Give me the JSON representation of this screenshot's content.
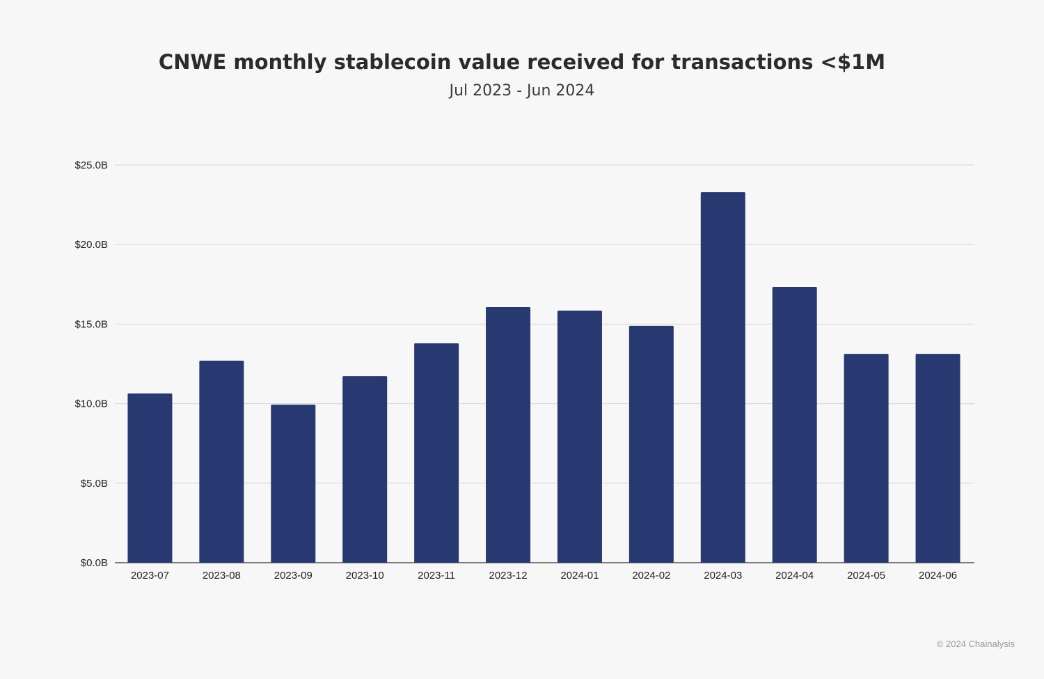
{
  "chart_data": {
    "type": "bar",
    "title": "CNWE monthly stablecoin value received for transactions <$1M",
    "subtitle": "Jul 2023 - Jun 2024",
    "xlabel": "",
    "ylabel": "",
    "categories": [
      "2023-07",
      "2023-08",
      "2023-09",
      "2023-10",
      "2023-11",
      "2023-12",
      "2024-01",
      "2024-02",
      "2024-03",
      "2024-04",
      "2024-05",
      "2024-06"
    ],
    "values": [
      10.64,
      12.7,
      9.94,
      11.73,
      13.79,
      16.07,
      15.85,
      14.89,
      23.29,
      17.34,
      13.13,
      13.13
    ],
    "unit": "B USD",
    "ylim": [
      0,
      25
    ],
    "yticks": [
      0,
      5,
      10,
      15,
      20,
      25
    ],
    "ytick_labels": [
      "$0.0B",
      "$5.0B",
      "$10.0B",
      "$15.0B",
      "$20.0B",
      "$25.0B"
    ],
    "grid": true,
    "bar_color": "#283871",
    "legend": "none"
  },
  "footer": "© 2024 Chainalysis"
}
